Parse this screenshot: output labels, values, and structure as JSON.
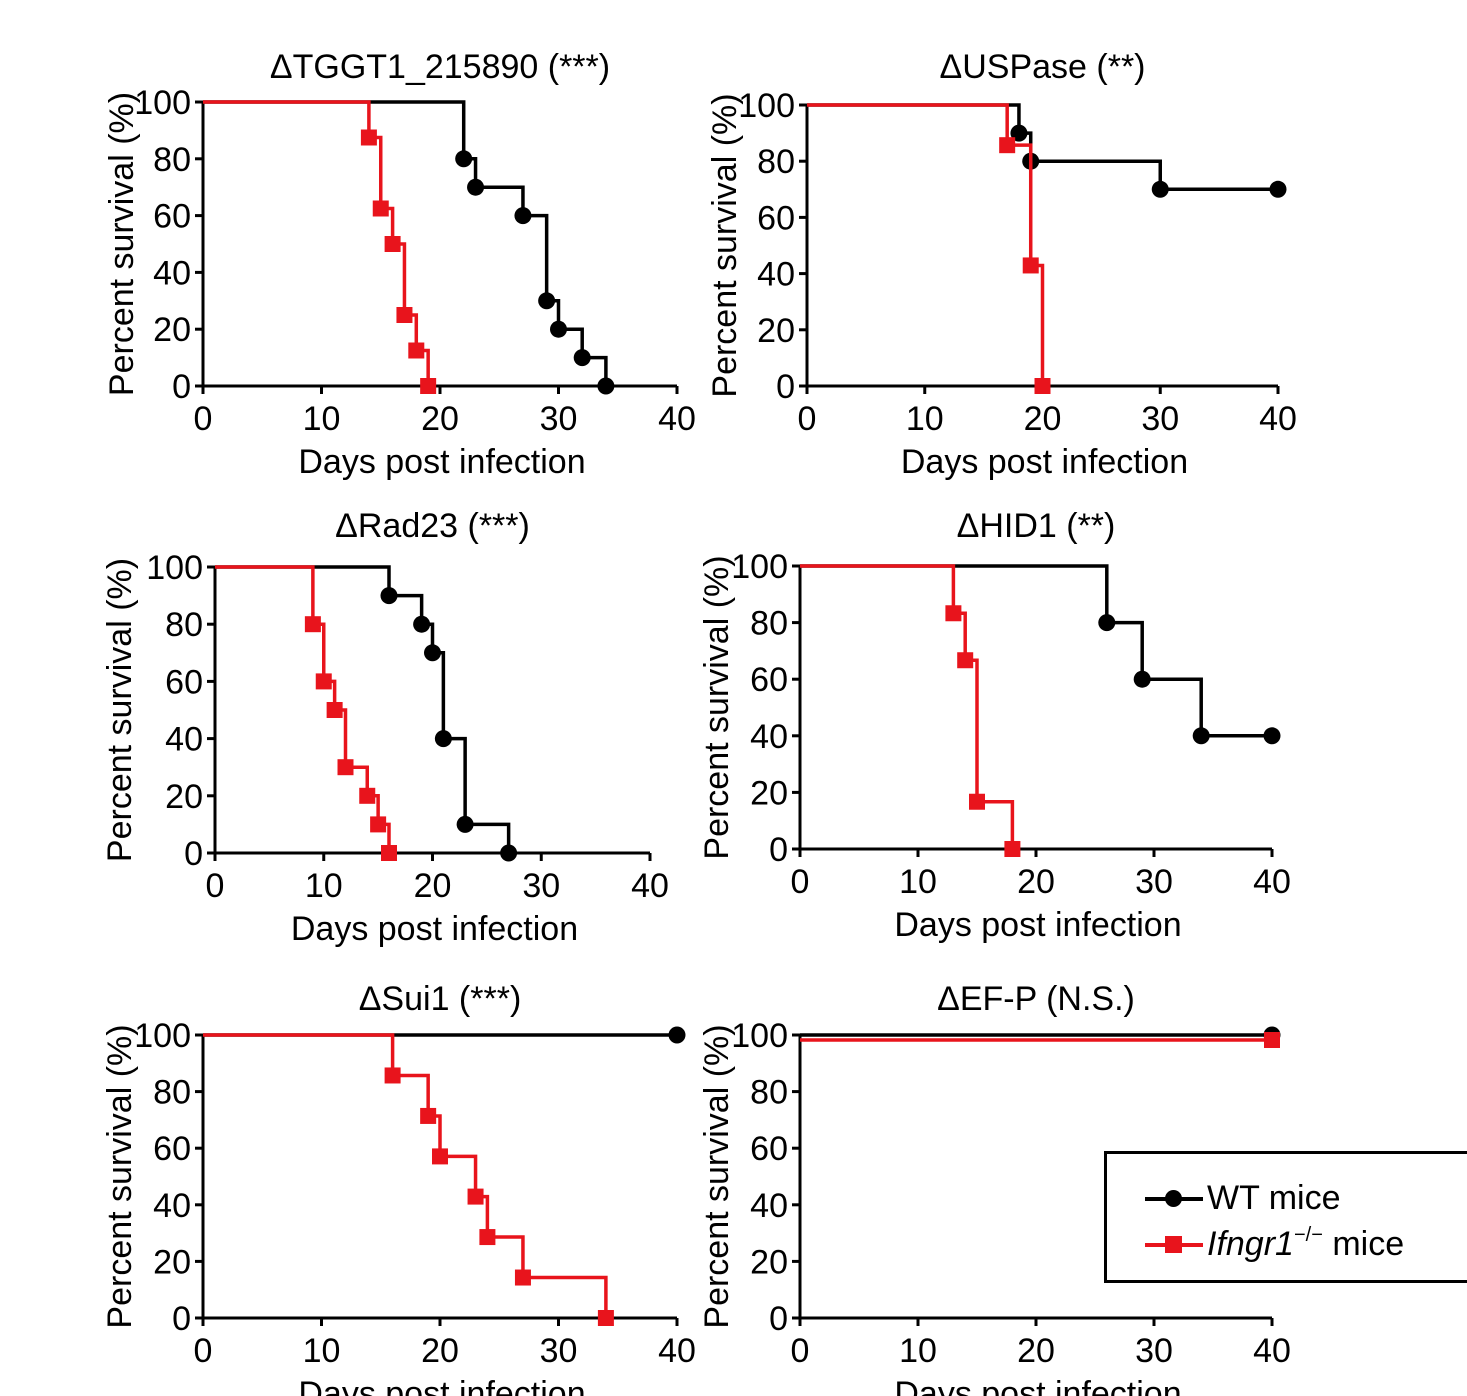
{
  "legend": {
    "wt_label": "WT mice",
    "ko_label_name": "Ifngr1",
    "ko_label_sup": "−/−",
    "ko_label_suffix": " mice"
  },
  "colors": {
    "wt": "#000000",
    "ko": "#e8141c"
  },
  "chart_data": [
    {
      "id": "tggt1",
      "type": "line",
      "title": "ΔTGGT1_215890 (***)",
      "xlabel": "Days post infection",
      "ylabel": "Percent survival (%)",
      "xlim": [
        0,
        40
      ],
      "ylim": [
        0,
        100
      ],
      "xticks": [
        0,
        10,
        20,
        30,
        40
      ],
      "yticks": [
        0,
        20,
        40,
        60,
        80,
        100
      ],
      "series": [
        {
          "name": "WT mice",
          "color": "#000000",
          "marker": "circle",
          "x": [
            0,
            22,
            23,
            27,
            29,
            30,
            32,
            34
          ],
          "y": [
            100,
            80,
            70,
            60,
            30,
            20,
            10,
            0
          ]
        },
        {
          "name": "Ifngr1−/− mice",
          "color": "#e8141c",
          "marker": "square",
          "x": [
            0,
            14,
            15,
            16,
            17,
            18,
            19
          ],
          "y": [
            100,
            87.5,
            62.5,
            50,
            25,
            12.5,
            0
          ]
        }
      ]
    },
    {
      "id": "uspase",
      "type": "line",
      "title": "ΔUSPase (**)",
      "xlabel": "Days post infection",
      "ylabel": "Percent survival (%)",
      "xlim": [
        0,
        40
      ],
      "ylim": [
        0,
        100
      ],
      "xticks": [
        0,
        10,
        20,
        30,
        40
      ],
      "yticks": [
        0,
        20,
        40,
        60,
        80,
        100
      ],
      "series": [
        {
          "name": "WT mice",
          "color": "#000000",
          "marker": "circle",
          "x": [
            0,
            18,
            19,
            30,
            40
          ],
          "y": [
            100,
            90,
            80,
            70,
            70
          ]
        },
        {
          "name": "Ifngr1−/− mice",
          "color": "#e8141c",
          "marker": "square",
          "x": [
            0,
            17,
            19,
            20
          ],
          "y": [
            100,
            85.7,
            42.9,
            0
          ]
        }
      ]
    },
    {
      "id": "rad23",
      "type": "line",
      "title": "ΔRad23 (***)",
      "xlabel": "Days post infection",
      "ylabel": "Percent survival (%)",
      "xlim": [
        0,
        40
      ],
      "ylim": [
        0,
        100
      ],
      "xticks": [
        0,
        10,
        20,
        30,
        40
      ],
      "yticks": [
        0,
        20,
        40,
        60,
        80,
        100
      ],
      "series": [
        {
          "name": "WT mice",
          "color": "#000000",
          "marker": "circle",
          "x": [
            0,
            16,
            19,
            20,
            21,
            23,
            27
          ],
          "y": [
            100,
            90,
            80,
            70,
            40,
            10,
            0
          ]
        },
        {
          "name": "Ifngr1−/− mice",
          "color": "#e8141c",
          "marker": "square",
          "x": [
            0,
            9,
            10,
            11,
            12,
            14,
            15,
            16
          ],
          "y": [
            100,
            80,
            60,
            50,
            30,
            20,
            10,
            0
          ]
        }
      ]
    },
    {
      "id": "hid1",
      "type": "line",
      "title": "ΔHID1 (**)",
      "xlabel": "Days post infection",
      "ylabel": "Percent survival (%)",
      "xlim": [
        0,
        40
      ],
      "ylim": [
        0,
        100
      ],
      "xticks": [
        0,
        10,
        20,
        30,
        40
      ],
      "yticks": [
        0,
        20,
        40,
        60,
        80,
        100
      ],
      "series": [
        {
          "name": "WT mice",
          "color": "#000000",
          "marker": "circle",
          "x": [
            0,
            26,
            29,
            34,
            40
          ],
          "y": [
            100,
            80,
            60,
            40,
            40
          ]
        },
        {
          "name": "Ifngr1−/− mice",
          "color": "#e8141c",
          "marker": "square",
          "x": [
            0,
            13,
            14,
            15,
            18
          ],
          "y": [
            100,
            83.3,
            66.7,
            16.7,
            0
          ]
        }
      ]
    },
    {
      "id": "sui1",
      "type": "line",
      "title": "ΔSui1 (***)",
      "xlabel": "Days post infection",
      "ylabel": "Percent survival (%)",
      "xlim": [
        0,
        40
      ],
      "ylim": [
        0,
        100
      ],
      "xticks": [
        0,
        10,
        20,
        30,
        40
      ],
      "yticks": [
        0,
        20,
        40,
        60,
        80,
        100
      ],
      "series": [
        {
          "name": "WT mice",
          "color": "#000000",
          "marker": "circle",
          "x": [
            0,
            40
          ],
          "y": [
            100,
            100
          ]
        },
        {
          "name": "Ifngr1−/− mice",
          "color": "#e8141c",
          "marker": "square",
          "x": [
            0,
            16,
            19,
            20,
            23,
            24,
            27,
            34
          ],
          "y": [
            100,
            85.7,
            71.4,
            57.1,
            42.9,
            28.6,
            14.3,
            0
          ]
        }
      ]
    },
    {
      "id": "efp",
      "type": "line",
      "title": "ΔEF-P (N.S.)",
      "xlabel": "Days post infection",
      "ylabel": "Percent survival (%)",
      "xlim": [
        0,
        40
      ],
      "ylim": [
        0,
        100
      ],
      "xticks": [
        0,
        10,
        20,
        30,
        40
      ],
      "yticks": [
        0,
        20,
        40,
        60,
        80,
        100
      ],
      "series": [
        {
          "name": "WT mice",
          "color": "#000000",
          "marker": "circle",
          "x": [
            0,
            40
          ],
          "y": [
            100,
            100
          ]
        },
        {
          "name": "Ifngr1−/− mice",
          "color": "#e8141c",
          "marker": "square",
          "x": [
            0,
            40
          ],
          "y": [
            100,
            100
          ]
        }
      ]
    }
  ]
}
